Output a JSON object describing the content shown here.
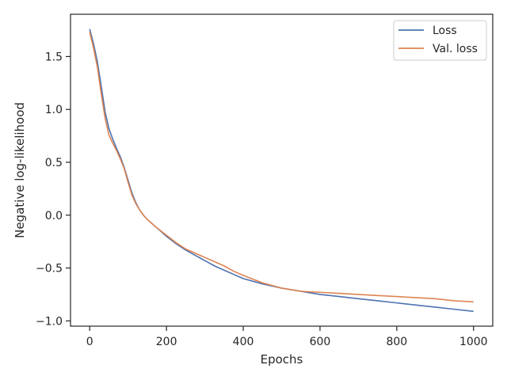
{
  "chart_data": {
    "type": "line",
    "xlabel": "Epochs",
    "ylabel": "Negative log-likelihood",
    "xlim": [
      -50,
      1050
    ],
    "ylim": [
      -1.05,
      1.9
    ],
    "xticks": [
      0,
      200,
      400,
      600,
      800,
      1000
    ],
    "xtick_labels": [
      "0",
      "200",
      "400",
      "600",
      "800",
      "1000"
    ],
    "yticks": [
      -1.0,
      -0.5,
      0.0,
      0.5,
      1.0,
      1.5
    ],
    "ytick_labels": [
      "−1.0",
      "−0.5",
      "0.0",
      "0.5",
      "1.0",
      "1.5"
    ],
    "grid": false,
    "legend_position": "top-right",
    "colors": {
      "loss": "#4c72b0",
      "val_loss": "#dd8452",
      "axes": "#262626"
    },
    "series": [
      {
        "name": "Loss",
        "color": "#4c72b0",
        "x": [
          0,
          10,
          20,
          30,
          40,
          50,
          60,
          70,
          80,
          90,
          100,
          110,
          120,
          130,
          140,
          150,
          175,
          200,
          225,
          250,
          275,
          300,
          325,
          350,
          375,
          400,
          450,
          500,
          550,
          600,
          650,
          700,
          750,
          800,
          850,
          900,
          950,
          1000
        ],
        "y": [
          1.76,
          1.62,
          1.45,
          1.22,
          0.98,
          0.82,
          0.72,
          0.63,
          0.55,
          0.45,
          0.33,
          0.21,
          0.12,
          0.05,
          0.0,
          -0.04,
          -0.12,
          -0.2,
          -0.27,
          -0.33,
          -0.38,
          -0.43,
          -0.48,
          -0.52,
          -0.56,
          -0.6,
          -0.65,
          -0.69,
          -0.72,
          -0.75,
          -0.77,
          -0.79,
          -0.81,
          -0.83,
          -0.85,
          -0.87,
          -0.89,
          -0.91
        ]
      },
      {
        "name": "Val. loss",
        "color": "#dd8452",
        "x": [
          0,
          10,
          20,
          30,
          40,
          50,
          60,
          70,
          80,
          90,
          100,
          110,
          120,
          130,
          140,
          150,
          175,
          200,
          225,
          250,
          275,
          300,
          325,
          350,
          375,
          400,
          450,
          500,
          550,
          600,
          650,
          700,
          750,
          800,
          850,
          900,
          950,
          1000
        ],
        "y": [
          1.73,
          1.58,
          1.4,
          1.15,
          0.92,
          0.76,
          0.68,
          0.61,
          0.53,
          0.44,
          0.31,
          0.19,
          0.11,
          0.05,
          0.0,
          -0.04,
          -0.12,
          -0.19,
          -0.26,
          -0.32,
          -0.36,
          -0.4,
          -0.44,
          -0.48,
          -0.53,
          -0.57,
          -0.64,
          -0.69,
          -0.72,
          -0.73,
          -0.74,
          -0.75,
          -0.76,
          -0.77,
          -0.78,
          -0.79,
          -0.81,
          -0.82
        ]
      }
    ]
  }
}
